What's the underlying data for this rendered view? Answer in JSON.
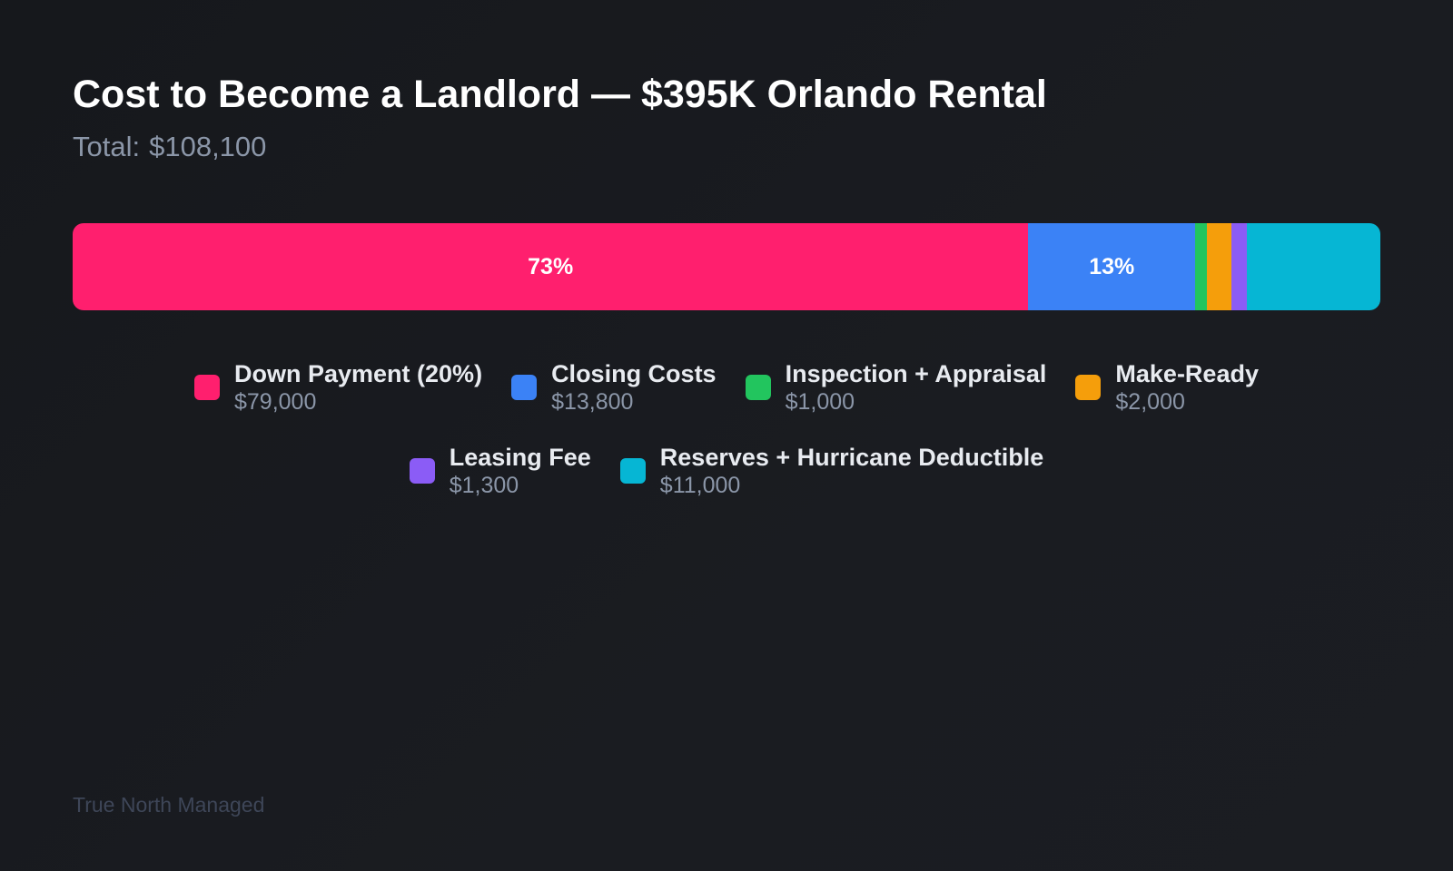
{
  "title": "Cost to Become a Landlord — $395K Orlando Rental",
  "subtitle": {
    "label": "Total:",
    "value": "$108,100"
  },
  "footer": "True North Managed",
  "chart_data": {
    "type": "bar",
    "orientation": "horizontal-stacked",
    "title": "Cost to Become a Landlord — $395K Orlando Rental",
    "total": 108100,
    "categories": [
      "Down Payment (20%)",
      "Closing Costs",
      "Inspection + Appraisal",
      "Make-Ready",
      "Leasing Fee",
      "Reserves + Hurricane Deductible"
    ],
    "values": [
      79000,
      13800,
      1000,
      2000,
      1300,
      11000
    ],
    "value_labels": [
      "$79,000",
      "$13,800",
      "$1,000",
      "$2,000",
      "$1,300",
      "$11,000"
    ],
    "segment_labels": [
      "73%",
      "13%",
      "",
      "",
      "",
      ""
    ],
    "colors": [
      "#ff1f6e",
      "#3b82f6",
      "#22c55e",
      "#f59e0b",
      "#8b5cf6",
      "#06b6d4"
    ],
    "legend_position": "bottom",
    "grid": false
  }
}
